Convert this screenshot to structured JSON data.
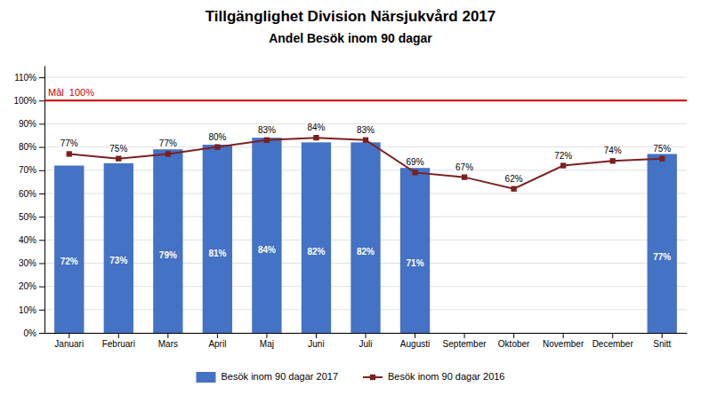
{
  "chart_data": {
    "type": "bar",
    "title": "Tillgänglighet Division Närsjukvård 2017",
    "subtitle": "Andel Besök inom 90 dagar",
    "categories": [
      "Januari",
      "Februari",
      "Mars",
      "April",
      "Maj",
      "Juni",
      "Juli",
      "Augusti",
      "September",
      "Oktober",
      "November",
      "December",
      "Snitt"
    ],
    "series": [
      {
        "name": "Besök inom 90 dagar 2017",
        "type": "bar",
        "color": "#4472C4",
        "values": [
          0.72,
          0.73,
          0.79,
          0.81,
          0.84,
          0.82,
          0.82,
          0.71,
          null,
          null,
          null,
          null,
          0.77
        ],
        "value_labels": [
          "72%",
          "73%",
          "79%",
          "81%",
          "84%",
          "82%",
          "82%",
          "71%",
          null,
          null,
          null,
          null,
          "77%"
        ]
      },
      {
        "name": "Besök inom 90 dagar 2016",
        "type": "line",
        "color": "#7B2020",
        "marker": "square",
        "values": [
          0.77,
          0.75,
          0.77,
          0.8,
          0.83,
          0.84,
          0.83,
          0.69,
          0.67,
          0.62,
          0.72,
          0.74,
          0.75
        ],
        "value_labels": [
          "77%",
          "75%",
          "77%",
          "80%",
          "83%",
          "84%",
          "83%",
          "69%",
          "67%",
          "62%",
          "72%",
          "74%",
          "75%"
        ]
      }
    ],
    "annotations": [
      {
        "label": "Mål  100%",
        "value": 1.0,
        "color": "#CC0000"
      }
    ],
    "ylim": [
      0,
      1.15
    ],
    "yticks": [
      {
        "value": 0,
        "label": "0%"
      },
      {
        "value": 0.1,
        "label": "10%"
      },
      {
        "value": 0.2,
        "label": "20%"
      },
      {
        "value": 0.3,
        "label": "30%"
      },
      {
        "value": 0.4,
        "label": "40%"
      },
      {
        "value": 0.5,
        "label": "50%"
      },
      {
        "value": 0.6,
        "label": "60%"
      },
      {
        "value": 0.7,
        "label": "70%"
      },
      {
        "value": 0.8,
        "label": "80%"
      },
      {
        "value": 0.9,
        "label": "90%"
      },
      {
        "value": 1.0,
        "label": "100%"
      },
      {
        "value": 1.1,
        "label": "110%"
      }
    ],
    "grid": true,
    "data_labels": true,
    "legend": "bottom"
  }
}
